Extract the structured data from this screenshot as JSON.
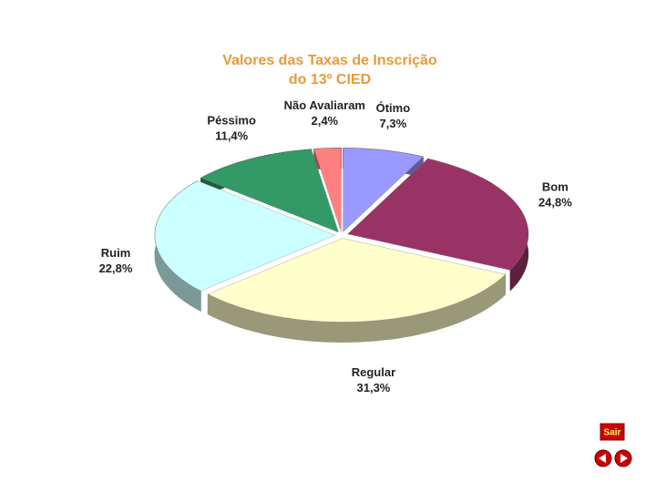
{
  "chart_data": {
    "type": "pie3d",
    "title": [
      "Valores das Taxas de Inscrição",
      "do 13º CIED"
    ],
    "categories": [
      "Ótimo",
      "Bom",
      "Regular",
      "Ruim",
      "Péssimo",
      "Não Avaliaram"
    ],
    "values": [
      7.3,
      24.8,
      31.3,
      22.8,
      11.4,
      2.4
    ],
    "value_labels": [
      "7,3%",
      "24,8%",
      "31,3%",
      "22,8%",
      "11,4%",
      "2,4%"
    ],
    "colors": [
      "#9999ff",
      "#993366",
      "#ffffcc",
      "#ccffff",
      "#339966",
      "#ff8080"
    ]
  },
  "controls": {
    "exit": "Sair"
  }
}
